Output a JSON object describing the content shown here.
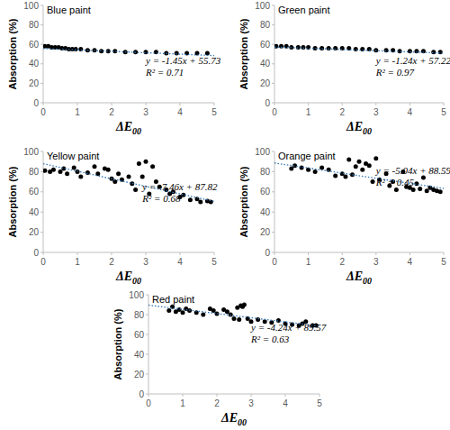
{
  "chart_data": [
    {
      "type": "scatter",
      "title": "Blue paint",
      "x_label": "ΔE00",
      "y_label": "Absorption (%)",
      "annotations": [
        "y = -1.45x + 55.73",
        "R² = 0.71"
      ],
      "xlim": [
        0,
        5
      ],
      "xticks": [
        0,
        1,
        2,
        3,
        4,
        5
      ],
      "ylim": [
        0,
        100
      ],
      "yticks": [
        0,
        20,
        40,
        60,
        80,
        100
      ],
      "grid": false,
      "series": [
        {
          "type": "scatter",
          "marker": "circle",
          "color": "#000000",
          "x": [
            0.05,
            0.15,
            0.25,
            0.35,
            0.45,
            0.55,
            0.65,
            0.75,
            0.85,
            0.95,
            1.1,
            1.3,
            1.5,
            1.7,
            1.9,
            2.1,
            2.4,
            2.7,
            3.0,
            3.3,
            3.6,
            3.9,
            4.2,
            4.5,
            4.8
          ],
          "values": [
            58,
            58,
            57,
            57,
            57,
            56,
            56,
            55,
            55,
            55,
            55,
            54,
            54,
            53,
            53,
            53,
            52,
            52,
            52,
            52,
            51,
            51,
            51,
            51,
            51
          ]
        },
        {
          "type": "line",
          "line_style": "dotted",
          "color": "#2e75b6",
          "x": [
            0,
            5
          ],
          "values": [
            55.73,
            48.48
          ]
        }
      ]
    },
    {
      "type": "scatter",
      "title": "Green paint",
      "x_label": "ΔE00",
      "y_label": "Absorption (%)",
      "annotations": [
        "y = -1.24x + 57.22",
        "R² = 0.97"
      ],
      "xlim": [
        0,
        5
      ],
      "xticks": [
        0,
        1,
        2,
        3,
        4,
        5
      ],
      "ylim": [
        0,
        100
      ],
      "yticks": [
        0,
        20,
        40,
        60,
        80,
        100
      ],
      "grid": false,
      "series": [
        {
          "type": "scatter",
          "marker": "circle",
          "color": "#000000",
          "x": [
            0.05,
            0.2,
            0.35,
            0.5,
            0.7,
            0.85,
            1.0,
            1.2,
            1.4,
            1.6,
            1.8,
            2.0,
            2.2,
            2.4,
            2.6,
            2.8,
            3.0,
            3.3,
            3.5,
            3.7,
            4.0,
            4.2,
            4.4,
            4.7,
            4.9
          ],
          "values": [
            58,
            58,
            58,
            57,
            57,
            57,
            57,
            56,
            56,
            56,
            56,
            56,
            56,
            55,
            55,
            55,
            54,
            54,
            54,
            53,
            53,
            53,
            53,
            52,
            52
          ]
        },
        {
          "type": "line",
          "line_style": "dotted",
          "color": "#2e75b6",
          "x": [
            0,
            5
          ],
          "values": [
            57.22,
            51.02
          ]
        }
      ]
    },
    {
      "type": "scatter",
      "title": "Yellow paint",
      "x_label": "ΔE00",
      "y_label": "Absorption (%)",
      "annotations": [
        "y = -7.46x + 87.82",
        "R² = 0.68"
      ],
      "xlim": [
        0,
        5
      ],
      "xticks": [
        0,
        1,
        2,
        3,
        4,
        5
      ],
      "ylim": [
        0,
        100
      ],
      "yticks": [
        0,
        20,
        40,
        60,
        80,
        100
      ],
      "grid": false,
      "series": [
        {
          "type": "scatter",
          "marker": "circle",
          "color": "#000000",
          "x": [
            0.05,
            0.2,
            0.3,
            0.5,
            0.6,
            0.7,
            0.9,
            1.0,
            1.1,
            1.3,
            1.5,
            1.6,
            1.8,
            1.9,
            2.0,
            2.1,
            2.2,
            2.3,
            2.5,
            2.6,
            2.7,
            2.8,
            2.9,
            3.0,
            3.1,
            3.2,
            3.3,
            3.4,
            3.6,
            3.7,
            3.8,
            4.0,
            4.1,
            4.3,
            4.5,
            4.6,
            4.8,
            4.9
          ],
          "values": [
            81,
            80,
            82,
            80,
            83,
            78,
            84,
            80,
            75,
            79,
            85,
            78,
            83,
            82,
            73,
            70,
            78,
            72,
            75,
            68,
            62,
            88,
            75,
            90,
            58,
            85,
            70,
            65,
            62,
            58,
            60,
            55,
            57,
            52,
            53,
            50,
            51,
            50
          ]
        },
        {
          "type": "line",
          "line_style": "dotted",
          "color": "#2e75b6",
          "x": [
            0,
            5
          ],
          "values": [
            87.82,
            50.52
          ]
        }
      ]
    },
    {
      "type": "scatter",
      "title": "Orange paint",
      "x_label": "ΔE00",
      "y_label": "Absorption (%)",
      "annotations": [
        "y = -5.04x + 88.59",
        "R² = 0.45"
      ],
      "xlim": [
        0,
        5
      ],
      "xticks": [
        0,
        1,
        2,
        3,
        4,
        5
      ],
      "ylim": [
        0,
        100
      ],
      "yticks": [
        0,
        20,
        40,
        60,
        80,
        100
      ],
      "grid": false,
      "series": [
        {
          "type": "scatter",
          "marker": "circle",
          "color": "#000000",
          "x": [
            0.5,
            0.6,
            0.8,
            1.0,
            1.2,
            1.4,
            1.6,
            1.8,
            2.0,
            2.1,
            2.2,
            2.3,
            2.4,
            2.5,
            2.6,
            2.7,
            2.8,
            2.9,
            3.0,
            3.1,
            3.3,
            3.4,
            3.5,
            3.6,
            3.8,
            3.9,
            4.0,
            4.1,
            4.2,
            4.3,
            4.4,
            4.5,
            4.6,
            4.7,
            4.8,
            4.9
          ],
          "values": [
            83,
            86,
            84,
            82,
            80,
            84,
            82,
            76,
            78,
            75,
            92,
            77,
            85,
            90,
            82,
            88,
            86,
            70,
            93,
            72,
            78,
            66,
            70,
            62,
            80,
            65,
            64,
            62,
            68,
            63,
            74,
            61,
            64,
            62,
            61,
            60
          ]
        },
        {
          "type": "line",
          "line_style": "dotted",
          "color": "#2e75b6",
          "x": [
            0,
            5
          ],
          "values": [
            88.59,
            63.39
          ]
        }
      ]
    },
    {
      "type": "scatter",
      "title": "Red paint",
      "x_label": "ΔE00",
      "y_label": "Absorption (%)",
      "annotations": [
        "y = -4.24x + 89.57",
        "R² = 0.63"
      ],
      "xlim": [
        0,
        5
      ],
      "xticks": [
        0,
        1,
        2,
        3,
        4,
        5
      ],
      "ylim": [
        0,
        100
      ],
      "yticks": [
        0,
        20,
        40,
        60,
        80,
        100
      ],
      "grid": false,
      "series": [
        {
          "type": "scatter",
          "marker": "circle",
          "color": "#000000",
          "x": [
            0.6,
            0.7,
            0.8,
            0.9,
            1.0,
            1.1,
            1.2,
            1.4,
            1.6,
            1.8,
            1.9,
            2.0,
            2.2,
            2.3,
            2.4,
            2.5,
            2.6,
            2.65,
            2.7,
            2.75,
            2.8,
            2.9,
            3.0,
            3.2,
            3.4,
            3.6,
            3.8,
            4.0,
            4.2,
            4.4,
            4.5,
            4.6,
            4.8,
            4.9
          ],
          "values": [
            84,
            88,
            83,
            85,
            82,
            86,
            84,
            82,
            80,
            86,
            84,
            81,
            85,
            83,
            80,
            76,
            87,
            75,
            89,
            88,
            90,
            76,
            73,
            75,
            73,
            72,
            74,
            71,
            70,
            69,
            71,
            73,
            69,
            69
          ]
        },
        {
          "type": "line",
          "line_style": "dotted",
          "color": "#2e75b6",
          "x": [
            0,
            5
          ],
          "values": [
            89.57,
            68.37
          ]
        }
      ]
    }
  ]
}
